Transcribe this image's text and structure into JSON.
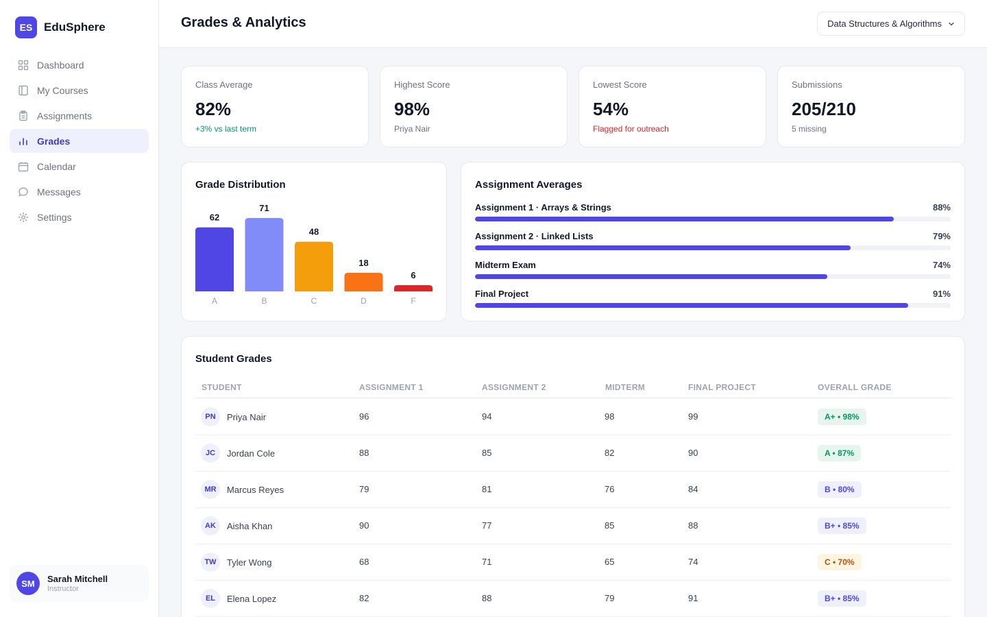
{
  "brand": {
    "logo": "ES",
    "name": "EduSphere"
  },
  "sidebar": {
    "items": [
      {
        "label": "Dashboard",
        "icon": "dashboard-icon",
        "active": false
      },
      {
        "label": "My Courses",
        "icon": "book-icon",
        "active": false
      },
      {
        "label": "Assignments",
        "icon": "clipboard-icon",
        "active": false
      },
      {
        "label": "Grades",
        "icon": "bar-chart-icon",
        "active": true
      },
      {
        "label": "Calendar",
        "icon": "calendar-icon",
        "active": false
      },
      {
        "label": "Messages",
        "icon": "message-icon",
        "active": false
      },
      {
        "label": "Settings",
        "icon": "gear-icon",
        "active": false
      }
    ],
    "user": {
      "initials": "SM",
      "name": "Sarah Mitchell",
      "role": "Instructor"
    }
  },
  "header": {
    "title": "Grades & Analytics",
    "course": "Data Structures & Algorithms"
  },
  "stats": [
    {
      "label": "Class Average",
      "value": "82%",
      "sub": "+3% vs last term",
      "tone": "green"
    },
    {
      "label": "Highest Score",
      "value": "98%",
      "sub": "Priya Nair",
      "tone": "gray"
    },
    {
      "label": "Lowest Score",
      "value": "54%",
      "sub": "Flagged for outreach",
      "tone": "red"
    },
    {
      "label": "Submissions",
      "value": "205/210",
      "sub": "5 missing",
      "tone": "gray"
    }
  ],
  "distribution": {
    "title": "Grade Distribution"
  },
  "chart_data": {
    "type": "bar",
    "categories": [
      "A",
      "B",
      "C",
      "D",
      "F"
    ],
    "values": [
      62,
      71,
      48,
      18,
      6
    ],
    "colors": [
      "#4f46e5",
      "#818cf8",
      "#f59e0b",
      "#f97316",
      "#dc2626"
    ],
    "title": "Grade Distribution",
    "xlabel": "",
    "ylabel": "",
    "grid": false
  },
  "averages": {
    "title": "Assignment Averages",
    "items": [
      {
        "name": "Assignment 1 · Arrays & Strings",
        "pct": "88%",
        "value": 88
      },
      {
        "name": "Assignment 2 · Linked Lists",
        "pct": "79%",
        "value": 79
      },
      {
        "name": "Midterm Exam",
        "pct": "74%",
        "value": 74
      },
      {
        "name": "Final Project",
        "pct": "91%",
        "value": 91
      }
    ]
  },
  "table": {
    "title": "Student Grades",
    "columns": [
      "STUDENT",
      "ASSIGNMENT 1",
      "ASSIGNMENT 2",
      "MIDTERM",
      "FINAL PROJECT",
      "OVERALL GRADE"
    ],
    "rows": [
      {
        "initials": "PN",
        "name": "Priya Nair",
        "a1": "96",
        "a2": "94",
        "mid": "98",
        "final": "99",
        "grade": "A+ • 98%",
        "tone": "green"
      },
      {
        "initials": "JC",
        "name": "Jordan Cole",
        "a1": "88",
        "a2": "85",
        "mid": "82",
        "final": "90",
        "grade": "A • 87%",
        "tone": "green"
      },
      {
        "initials": "MR",
        "name": "Marcus Reyes",
        "a1": "79",
        "a2": "81",
        "mid": "76",
        "final": "84",
        "grade": "B • 80%",
        "tone": "indigo"
      },
      {
        "initials": "AK",
        "name": "Aisha Khan",
        "a1": "90",
        "a2": "77",
        "mid": "85",
        "final": "88",
        "grade": "B+ • 85%",
        "tone": "indigo"
      },
      {
        "initials": "TW",
        "name": "Tyler Wong",
        "a1": "68",
        "a2": "71",
        "mid": "65",
        "final": "74",
        "grade": "C • 70%",
        "tone": "amber"
      },
      {
        "initials": "EL",
        "name": "Elena Lopez",
        "a1": "82",
        "a2": "88",
        "mid": "79",
        "final": "91",
        "grade": "B+ • 85%",
        "tone": "indigo"
      }
    ]
  }
}
